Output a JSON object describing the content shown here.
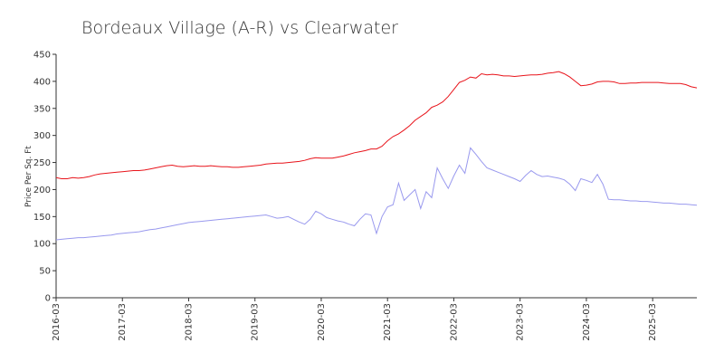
{
  "chart_data": {
    "type": "line",
    "title": "Bordeaux Village (A-R) vs Clearwater",
    "ylabel": "Price Per Sq. Ft",
    "x": [
      "2016-03",
      "2016-04",
      "2016-05",
      "2016-06",
      "2016-07",
      "2016-08",
      "2016-09",
      "2016-10",
      "2016-11",
      "2016-12",
      "2017-01",
      "2017-02",
      "2017-03",
      "2017-04",
      "2017-05",
      "2017-06",
      "2017-07",
      "2017-08",
      "2017-09",
      "2017-10",
      "2017-11",
      "2017-12",
      "2018-01",
      "2018-02",
      "2018-03",
      "2018-04",
      "2018-05",
      "2018-06",
      "2018-07",
      "2018-08",
      "2018-09",
      "2018-10",
      "2018-11",
      "2018-12",
      "2019-01",
      "2019-02",
      "2019-03",
      "2019-04",
      "2019-05",
      "2019-06",
      "2019-07",
      "2019-08",
      "2019-09",
      "2019-10",
      "2019-11",
      "2019-12",
      "2020-01",
      "2020-02",
      "2020-03",
      "2020-04",
      "2020-05",
      "2020-06",
      "2020-07",
      "2020-08",
      "2020-09",
      "2020-10",
      "2020-11",
      "2020-12",
      "2021-01",
      "2021-02",
      "2021-03",
      "2021-04",
      "2021-05",
      "2021-06",
      "2021-07",
      "2021-08",
      "2021-09",
      "2021-10",
      "2021-11",
      "2021-12",
      "2022-01",
      "2022-02",
      "2022-03",
      "2022-04",
      "2022-05",
      "2022-06",
      "2022-07",
      "2022-08",
      "2022-09",
      "2022-10",
      "2022-11",
      "2022-12",
      "2023-01",
      "2023-02",
      "2023-03",
      "2023-04",
      "2023-05",
      "2023-06",
      "2023-07",
      "2023-08",
      "2023-09",
      "2023-10",
      "2023-11",
      "2023-12",
      "2024-01",
      "2024-02",
      "2024-03",
      "2024-04",
      "2024-05",
      "2024-06",
      "2024-07",
      "2024-08",
      "2024-09",
      "2024-10",
      "2024-11",
      "2024-12",
      "2025-01",
      "2025-02",
      "2025-03",
      "2025-04",
      "2025-05",
      "2025-06",
      "2025-07",
      "2025-08",
      "2025-09",
      "2025-10",
      "2025-11"
    ],
    "series": [
      {
        "color": "#e8141b",
        "values": [
          222,
          220,
          220,
          222,
          221,
          222,
          224,
          227,
          229,
          230,
          231,
          232,
          233,
          234,
          235,
          235,
          236,
          238,
          240,
          242,
          244,
          245,
          243,
          242,
          243,
          244,
          243,
          243,
          244,
          243,
          242,
          242,
          241,
          241,
          242,
          243,
          244,
          245,
          247,
          248,
          249,
          249,
          250,
          251,
          252,
          254,
          257,
          259,
          258,
          258,
          258,
          260,
          262,
          265,
          268,
          270,
          272,
          275,
          275,
          280,
          290,
          298,
          303,
          310,
          318,
          328,
          335,
          342,
          352,
          356,
          362,
          372,
          385,
          398,
          402,
          408,
          406,
          414,
          412,
          413,
          412,
          410,
          410,
          409,
          410,
          411,
          412,
          412,
          413,
          415,
          416,
          418,
          414,
          408,
          400,
          392,
          393,
          395,
          399,
          400,
          400,
          399,
          396,
          396,
          397,
          397,
          398,
          398,
          398,
          398,
          397,
          396,
          396,
          396,
          394,
          390,
          388
        ]
      },
      {
        "color": "#9999ee",
        "values": [
          107,
          108,
          109,
          110,
          111,
          111,
          112,
          113,
          114,
          115,
          116,
          118,
          119,
          120,
          121,
          122,
          124,
          126,
          127,
          129,
          131,
          133,
          135,
          137,
          139,
          140,
          141,
          142,
          143,
          144,
          145,
          146,
          147,
          148,
          149,
          150,
          151,
          152,
          153,
          150,
          147,
          148,
          150,
          145,
          140,
          136,
          145,
          160,
          155,
          148,
          145,
          142,
          140,
          136,
          133,
          145,
          155,
          153,
          119,
          150,
          168,
          172,
          212,
          180,
          190,
          200,
          165,
          196,
          185,
          240,
          220,
          202,
          225,
          245,
          230,
          277,
          265,
          252,
          240,
          236,
          232,
          228,
          224,
          220,
          215,
          226,
          235,
          228,
          224,
          225,
          223,
          221,
          218,
          210,
          198,
          220,
          217,
          213,
          228,
          210,
          182,
          181,
          181,
          180,
          179,
          179,
          178,
          178,
          177,
          176,
          175,
          175,
          174,
          173,
          173,
          172,
          171
        ]
      }
    ],
    "xticks": [
      "2016-03",
      "2017-03",
      "2018-03",
      "2019-03",
      "2020-03",
      "2021-03",
      "2022-03",
      "2023-03",
      "2024-03",
      "2025-03"
    ],
    "ylim": [
      0,
      450
    ],
    "yticks": [
      0,
      50,
      100,
      150,
      200,
      250,
      300,
      350,
      400,
      450
    ]
  }
}
